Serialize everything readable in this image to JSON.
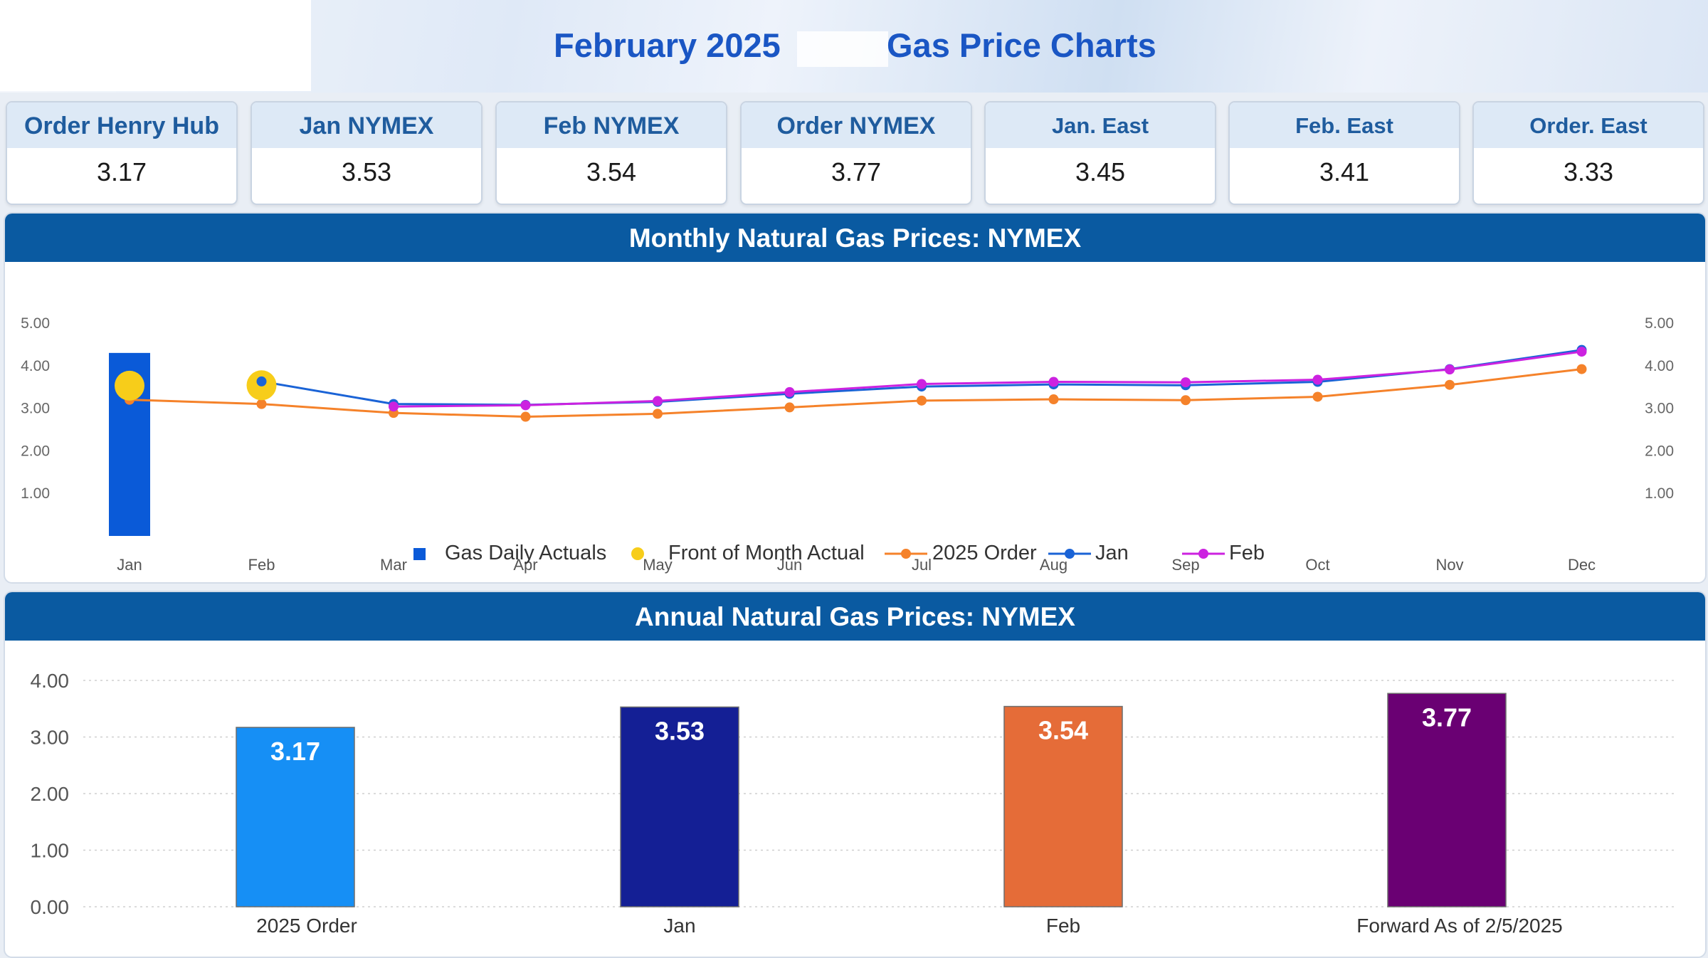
{
  "header": {
    "title_month": "February 2025",
    "title_main": "Gas Price Charts"
  },
  "cards": [
    {
      "label": "Order Henry Hub",
      "value": "3.17"
    },
    {
      "label": "Jan NYMEX",
      "value": "3.53"
    },
    {
      "label": "Feb NYMEX",
      "value": "3.54"
    },
    {
      "label": "Order NYMEX",
      "value": "3.77"
    },
    {
      "label": "Jan. East",
      "value": "3.45"
    },
    {
      "label": "Feb. East",
      "value": "3.41"
    },
    {
      "label": "Order. East",
      "value": "3.33"
    }
  ],
  "colors": {
    "gas_daily": "#0a5ad8",
    "front_of_month": "#f7cd1a",
    "order_2025": "#f5822a",
    "jan": "#1a63d6",
    "feb": "#cc22e0",
    "annual_bars": [
      "#168ff5",
      "#141f95",
      "#e56c38",
      "#6a0073"
    ]
  },
  "chart_data": [
    {
      "type": "line",
      "title": "Monthly Natural Gas Prices: NYMEX",
      "categories": [
        "Jan",
        "Feb",
        "Mar",
        "Apr",
        "May",
        "Jun",
        "Jul",
        "Aug",
        "Sep",
        "Oct",
        "Nov",
        "Dec"
      ],
      "ylim": [
        0,
        5
      ],
      "yticks": [
        "1.00",
        "2.00",
        "3.00",
        "4.00",
        "5.00"
      ],
      "legend": "bottom-center",
      "series": [
        {
          "name": "Gas Daily Actuals",
          "kind": "bar",
          "values": [
            4.3,
            null,
            null,
            null,
            null,
            null,
            null,
            null,
            null,
            null,
            null,
            null
          ]
        },
        {
          "name": "Front of Month Actual",
          "kind": "marker",
          "values": [
            3.53,
            3.54,
            null,
            null,
            null,
            null,
            null,
            null,
            null,
            null,
            null,
            null
          ]
        },
        {
          "name": "2025 Order",
          "kind": "line",
          "values": [
            3.2,
            3.1,
            2.89,
            2.8,
            2.87,
            3.02,
            3.18,
            3.21,
            3.19,
            3.27,
            3.55,
            3.92
          ]
        },
        {
          "name": "Jan",
          "kind": "line",
          "values": [
            null,
            3.63,
            3.1,
            3.08,
            3.15,
            3.34,
            3.51,
            3.56,
            3.54,
            3.62,
            3.92,
            4.37
          ]
        },
        {
          "name": "Feb",
          "kind": "line",
          "values": [
            null,
            null,
            3.04,
            3.07,
            3.17,
            3.38,
            3.57,
            3.62,
            3.61,
            3.67,
            3.91,
            4.33
          ]
        }
      ]
    },
    {
      "type": "bar",
      "title": "Annual Natural Gas Prices: NYMEX",
      "categories": [
        "2025 Order",
        "Jan",
        "Feb",
        "Forward As of 2/5/2025"
      ],
      "values": [
        3.17,
        3.53,
        3.54,
        3.77
      ],
      "labels": [
        "3.17",
        "3.53",
        "3.54",
        "3.77"
      ],
      "ylim": [
        0,
        4
      ],
      "yticks": [
        "0.00",
        "1.00",
        "2.00",
        "3.00",
        "4.00"
      ]
    }
  ]
}
